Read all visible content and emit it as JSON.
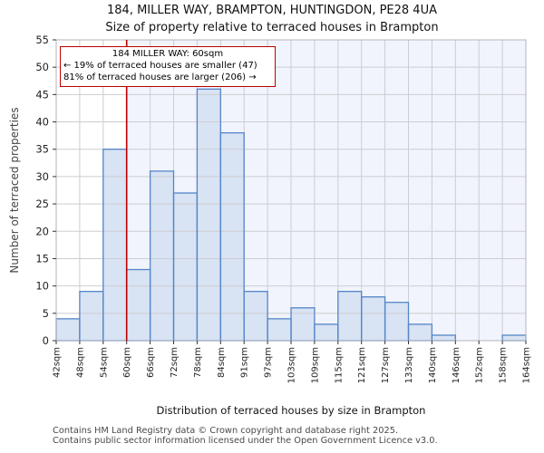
{
  "page": {
    "title_line1": "184, MILLER WAY, BRAMPTON, HUNTINGDON, PE28 4UA",
    "title_line2": "Size of property relative to terraced houses in Brampton",
    "footer_line1": "Contains HM Land Registry data © Crown copyright and database right 2025.",
    "footer_line2": "Contains public sector information licensed under the Open Government Licence v3.0."
  },
  "chart_data": {
    "type": "bar",
    "title": "184, MILLER WAY, BRAMPTON, HUNTINGDON, PE28 4UA",
    "subtitle": "Size of property relative to terraced houses in Brampton",
    "xlabel": "Distribution of terraced houses by size in Brampton",
    "ylabel": "Number of terraced properties",
    "bin_edges_sqm": [
      42,
      48,
      54,
      60,
      66,
      72,
      78,
      84,
      91,
      97,
      103,
      109,
      115,
      121,
      127,
      133,
      140,
      146,
      152,
      158,
      164
    ],
    "tick_labels": [
      "42sqm",
      "48sqm",
      "54sqm",
      "60sqm",
      "66sqm",
      "72sqm",
      "78sqm",
      "84sqm",
      "91sqm",
      "97sqm",
      "103sqm",
      "109sqm",
      "115sqm",
      "121sqm",
      "127sqm",
      "133sqm",
      "140sqm",
      "146sqm",
      "152sqm",
      "158sqm",
      "164sqm"
    ],
    "values": [
      4,
      9,
      35,
      13,
      31,
      27,
      46,
      38,
      9,
      4,
      6,
      3,
      9,
      8,
      7,
      3,
      1,
      0,
      0,
      1
    ],
    "ylim": [
      0,
      55
    ],
    "ytick_step": 5,
    "grid": true,
    "legend": "none",
    "marker": {
      "value_sqm": 60,
      "annotation_line1": "184 MILLER WAY: 60sqm",
      "annotation_line2": "← 19% of terraced houses are smaller (47)",
      "annotation_line3": "81% of terraced houses are larger (206) →"
    },
    "colors": {
      "bar_fill": "#d8e3f4",
      "bar_stroke": "#5585c8",
      "marker_line": "#bb0000",
      "annotation_border": "#bb0000",
      "shade_right_of_marker": "#f1f4fc",
      "gridline": "#cdcdd2",
      "spine": "#b3b3bc",
      "tick_text": "#222222"
    }
  }
}
